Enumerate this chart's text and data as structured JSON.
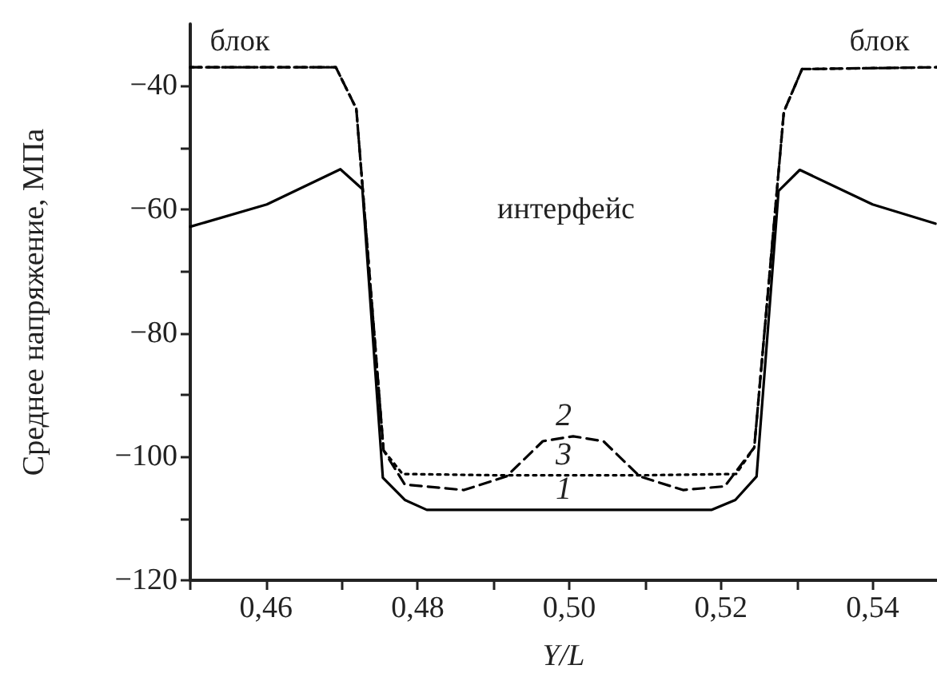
{
  "chart_data": {
    "type": "line",
    "xlabel": "Y/L",
    "ylabel": "Среднее напряжение, МПа",
    "xlim": [
      0.45,
      0.5485
    ],
    "ylim": [
      -120,
      -30
    ],
    "xticks": [
      {
        "value": 0.45,
        "label": null
      },
      {
        "value": 0.46,
        "label": "0,46"
      },
      {
        "value": 0.47,
        "label": null
      },
      {
        "value": 0.48,
        "label": "0,48"
      },
      {
        "value": 0.49,
        "label": null
      },
      {
        "value": 0.5,
        "label": "0,50"
      },
      {
        "value": 0.51,
        "label": null
      },
      {
        "value": 0.52,
        "label": "0,52"
      },
      {
        "value": 0.53,
        "label": null
      },
      {
        "value": 0.54,
        "label": "0,54"
      }
    ],
    "yticks": [
      {
        "value": -120,
        "label": "−120"
      },
      {
        "value": -110,
        "label": null
      },
      {
        "value": -100,
        "label": "−100"
      },
      {
        "value": -90,
        "label": null
      },
      {
        "value": -80,
        "label": "−80"
      },
      {
        "value": -70,
        "label": null
      },
      {
        "value": -60,
        "label": "−60"
      },
      {
        "value": -50,
        "label": null
      },
      {
        "value": -40,
        "label": "−40"
      }
    ],
    "grid": false,
    "marker": "none",
    "series": [
      {
        "name": "1",
        "color": "#000000",
        "line_style": "solid",
        "x": [
          0.45,
          0.4601,
          0.4698,
          0.4727,
          0.4754,
          0.4783,
          0.4812,
          0.5188,
          0.5219,
          0.5247,
          0.5276,
          0.5304,
          0.54,
          0.5483
        ],
        "values": [
          -62.8,
          -59.2,
          -53.5,
          -56.7,
          -103.4,
          -107,
          -108.6,
          -108.6,
          -107,
          -103.2,
          -57,
          -53.6,
          -59.2,
          -62.3
        ]
      },
      {
        "name": "2",
        "color": "#000000",
        "line_style": "dashed",
        "x": [
          0.45,
          0.4692,
          0.4719,
          0.4755,
          0.4783,
          0.4861,
          0.4917,
          0.4965,
          0.5005,
          0.5045,
          0.5093,
          0.515,
          0.5205,
          0.5244,
          0.5283,
          0.5307,
          0.5485
        ],
        "values": [
          -37,
          -37,
          -43.7,
          -99,
          -104.5,
          -105.4,
          -103.2,
          -97.5,
          -96.7,
          -97.5,
          -103.2,
          -105.4,
          -104.8,
          -98.5,
          -44.2,
          -37.3,
          -37
        ]
      },
      {
        "name": "3",
        "color": "#000000",
        "line_style": "dotted",
        "x": [
          0.45,
          0.4692,
          0.4719,
          0.4755,
          0.478,
          0.49,
          0.5,
          0.51,
          0.522,
          0.5244,
          0.5283,
          0.5307,
          0.5485
        ],
        "values": [
          -37,
          -37,
          -43.7,
          -99,
          -102.8,
          -103,
          -103,
          -103,
          -102.8,
          -98.5,
          -44.2,
          -37.3,
          -37
        ]
      }
    ],
    "annotations": [
      "блок",
      "блок",
      "интерфейс"
    ]
  }
}
